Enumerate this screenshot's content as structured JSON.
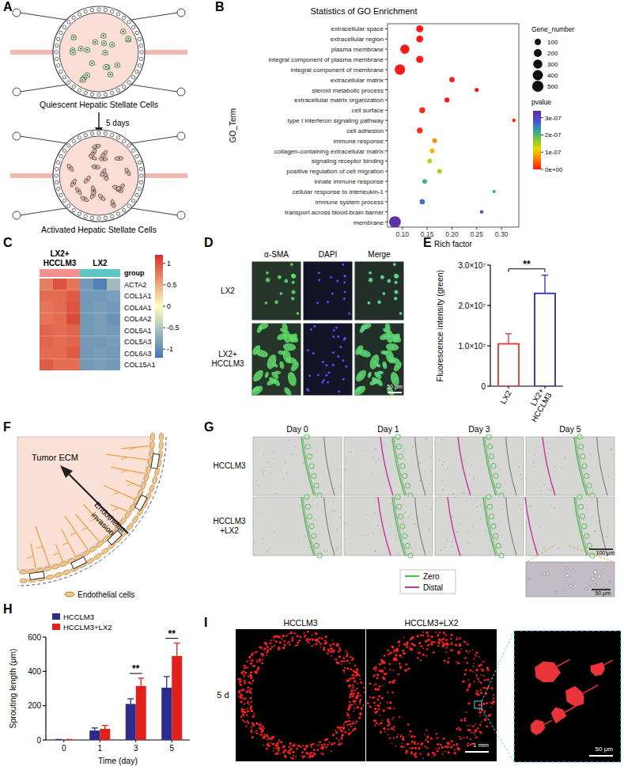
{
  "panel_labels": [
    "A",
    "B",
    "C",
    "D",
    "E",
    "F",
    "G",
    "H",
    "I"
  ],
  "panel_a": {
    "top_label": "Quiescent Hepatic Stellate Cells",
    "arrow_label": "5 days",
    "bottom_label": "Activated Hepatic Stellate Cells"
  },
  "chart_data": [
    {
      "type": "scatter",
      "title": "Statistics of GO Enrichment",
      "x_label": "Rich factor",
      "y_label": "GO_Term",
      "categories": [
        "extracellular space",
        "extracellular region",
        "plasma membrane",
        "integral component of plasma membrane",
        "integral component of membrane",
        "extracellular matrix",
        "steroid metabolic process",
        "extracellular matrix organization",
        "cell surface",
        "type I interferon signaling pathway",
        "cell adhesion",
        "immune response",
        "collagen-containing extracellular matrix",
        "signaling receptor binding",
        "positive regulation of cell migration",
        "innate immune response",
        "cellular response to interleukin-1",
        "immune system process",
        "transport across blood-brain barrier",
        "membrane"
      ],
      "values": [
        0.135,
        0.135,
        0.105,
        0.135,
        0.095,
        0.2,
        0.25,
        0.19,
        0.14,
        0.325,
        0.135,
        0.165,
        0.16,
        0.155,
        0.175,
        0.145,
        0.285,
        0.14,
        0.26,
        0.085
      ],
      "gene_number": [
        150,
        140,
        300,
        160,
        420,
        60,
        25,
        50,
        90,
        15,
        80,
        45,
        45,
        40,
        40,
        40,
        10,
        60,
        15,
        550
      ],
      "pvalue": [
        0,
        0,
        0,
        0,
        0,
        0,
        0,
        0,
        1e-08,
        1e-08,
        1e-08,
        7e-08,
        1e-07,
        1.4e-07,
        1.5e-07,
        2.1e-07,
        2.2e-07,
        2.6e-07,
        2.8e-07,
        3.3e-07
      ],
      "xlim": [
        0.07,
        0.335
      ],
      "xticks": [
        {
          "value": 0.1,
          "label": "0.10"
        },
        0.15,
        {
          "value": 0.2,
          "label": "0.20"
        },
        0.25,
        {
          "value": 0.3,
          "label": "0.30"
        }
      ],
      "size_legend": {
        "title": "Gene_number",
        "values": [
          100,
          200,
          300,
          400,
          500
        ]
      },
      "color_bar": {
        "title": "pvalue",
        "range": [
          0,
          3.4e-07
        ],
        "ticks": [
          {
            "value": 0,
            "label": "0e+00"
          },
          {
            "value": 1e-07,
            "label": "1e-07"
          },
          {
            "value": 2e-07,
            "label": "2e-07"
          },
          {
            "value": 3e-07,
            "label": "3e-07"
          }
        ]
      },
      "grid": false
    },
    {
      "type": "heatmap",
      "legend_title": "group",
      "groups": [
        {
          "name": "LX2+ HCCLM3",
          "color": "#f4908e",
          "columns": 3
        },
        {
          "name": "LX2",
          "color": "#5fc6c6",
          "columns": 3
        }
      ],
      "rows": [
        "ACTA2",
        "COL1A1",
        "COL4A1",
        "COL4A2",
        "COL5A1",
        "COL5A3",
        "COL6A3",
        "COL15A1"
      ],
      "cells": [
        [
          0.75,
          1.0,
          0.8,
          -0.9,
          -1.1,
          -0.6
        ],
        [
          0.85,
          0.85,
          0.95,
          -0.9,
          -0.9,
          -0.85
        ],
        [
          0.8,
          0.85,
          1.0,
          -0.9,
          -0.85,
          -0.9
        ],
        [
          0.8,
          0.85,
          1.05,
          -0.9,
          -0.85,
          -0.95
        ],
        [
          0.9,
          0.85,
          0.9,
          -0.9,
          -0.85,
          -0.9
        ],
        [
          0.9,
          0.85,
          0.9,
          -0.9,
          -0.9,
          -0.85
        ],
        [
          0.85,
          0.85,
          0.95,
          -0.9,
          -0.85,
          -0.9
        ],
        [
          0.95,
          0.85,
          0.85,
          -0.9,
          -0.85,
          -0.9
        ]
      ],
      "color_bar": {
        "range": [
          -1.2,
          1.2
        ],
        "ticks": [
          1,
          0.5,
          0,
          -0.5,
          -1
        ]
      }
    },
    {
      "type": "bar",
      "y_label": "Fluorescence intensity (green)",
      "categories": [
        "LX2",
        "LX2+ HCCLM3"
      ],
      "values": [
        10500000,
        23000000
      ],
      "errors": [
        2500000,
        4500000
      ],
      "colors": [
        "#e8332e",
        "#2b2bb3"
      ],
      "ylim": [
        0,
        30000000
      ],
      "yticks": [
        0,
        {
          "value": 10000000,
          "label": "1.0×10⁷"
        },
        {
          "value": 20000000,
          "label": "2.0×10⁷"
        },
        {
          "value": 30000000,
          "label": "3.0×10⁷"
        }
      ],
      "significance": "**"
    },
    {
      "type": "bar",
      "x_label": "Time (day)",
      "y_label": "Sprouting length (μm)",
      "categories": [
        "0",
        "1",
        "3",
        "5"
      ],
      "series": [
        {
          "name": "HCCLM3",
          "color": "#2c2c8a",
          "values": [
            0,
            55,
            210,
            305
          ],
          "errors": [
            3,
            15,
            30,
            65
          ]
        },
        {
          "name": "HCCLM3+LX2",
          "color": "#e0201b",
          "values": [
            0,
            65,
            315,
            490
          ],
          "errors": [
            3,
            20,
            45,
            75
          ]
        }
      ],
      "ylim": [
        0,
        600
      ],
      "yticks": [
        0,
        200,
        400,
        600
      ],
      "legend": "top-left",
      "significance": [
        null,
        null,
        "**",
        "**"
      ]
    }
  ],
  "panel_d": {
    "columns": [
      "α-SMA",
      "DAPI",
      "Merge"
    ],
    "rows": [
      "LX2",
      "LX2+ HCCLM3"
    ],
    "scale_bar": "50 μm"
  },
  "panel_f": {
    "region_label": "Tumor ECM",
    "arrow_label": "Endothelial invasion",
    "legend_label": "Endothelial cells"
  },
  "panel_g": {
    "columns": [
      "Day 0",
      "Day 1",
      "Day 3",
      "Day 5"
    ],
    "rows": [
      "HCCLM3",
      "HCCLM3 +LX2"
    ],
    "legend": [
      {
        "name": "Zero",
        "color": "#3ec43e"
      },
      {
        "name": "Distal",
        "color": "#c8329b"
      }
    ],
    "scale_bars": [
      "100 μm",
      "50 μm"
    ]
  },
  "panel_i": {
    "columns": [
      "HCCLM3",
      "HCCLM3+LX2"
    ],
    "row_label": "5 d",
    "scale_bars": [
      "1 mm",
      "50 μm"
    ]
  }
}
